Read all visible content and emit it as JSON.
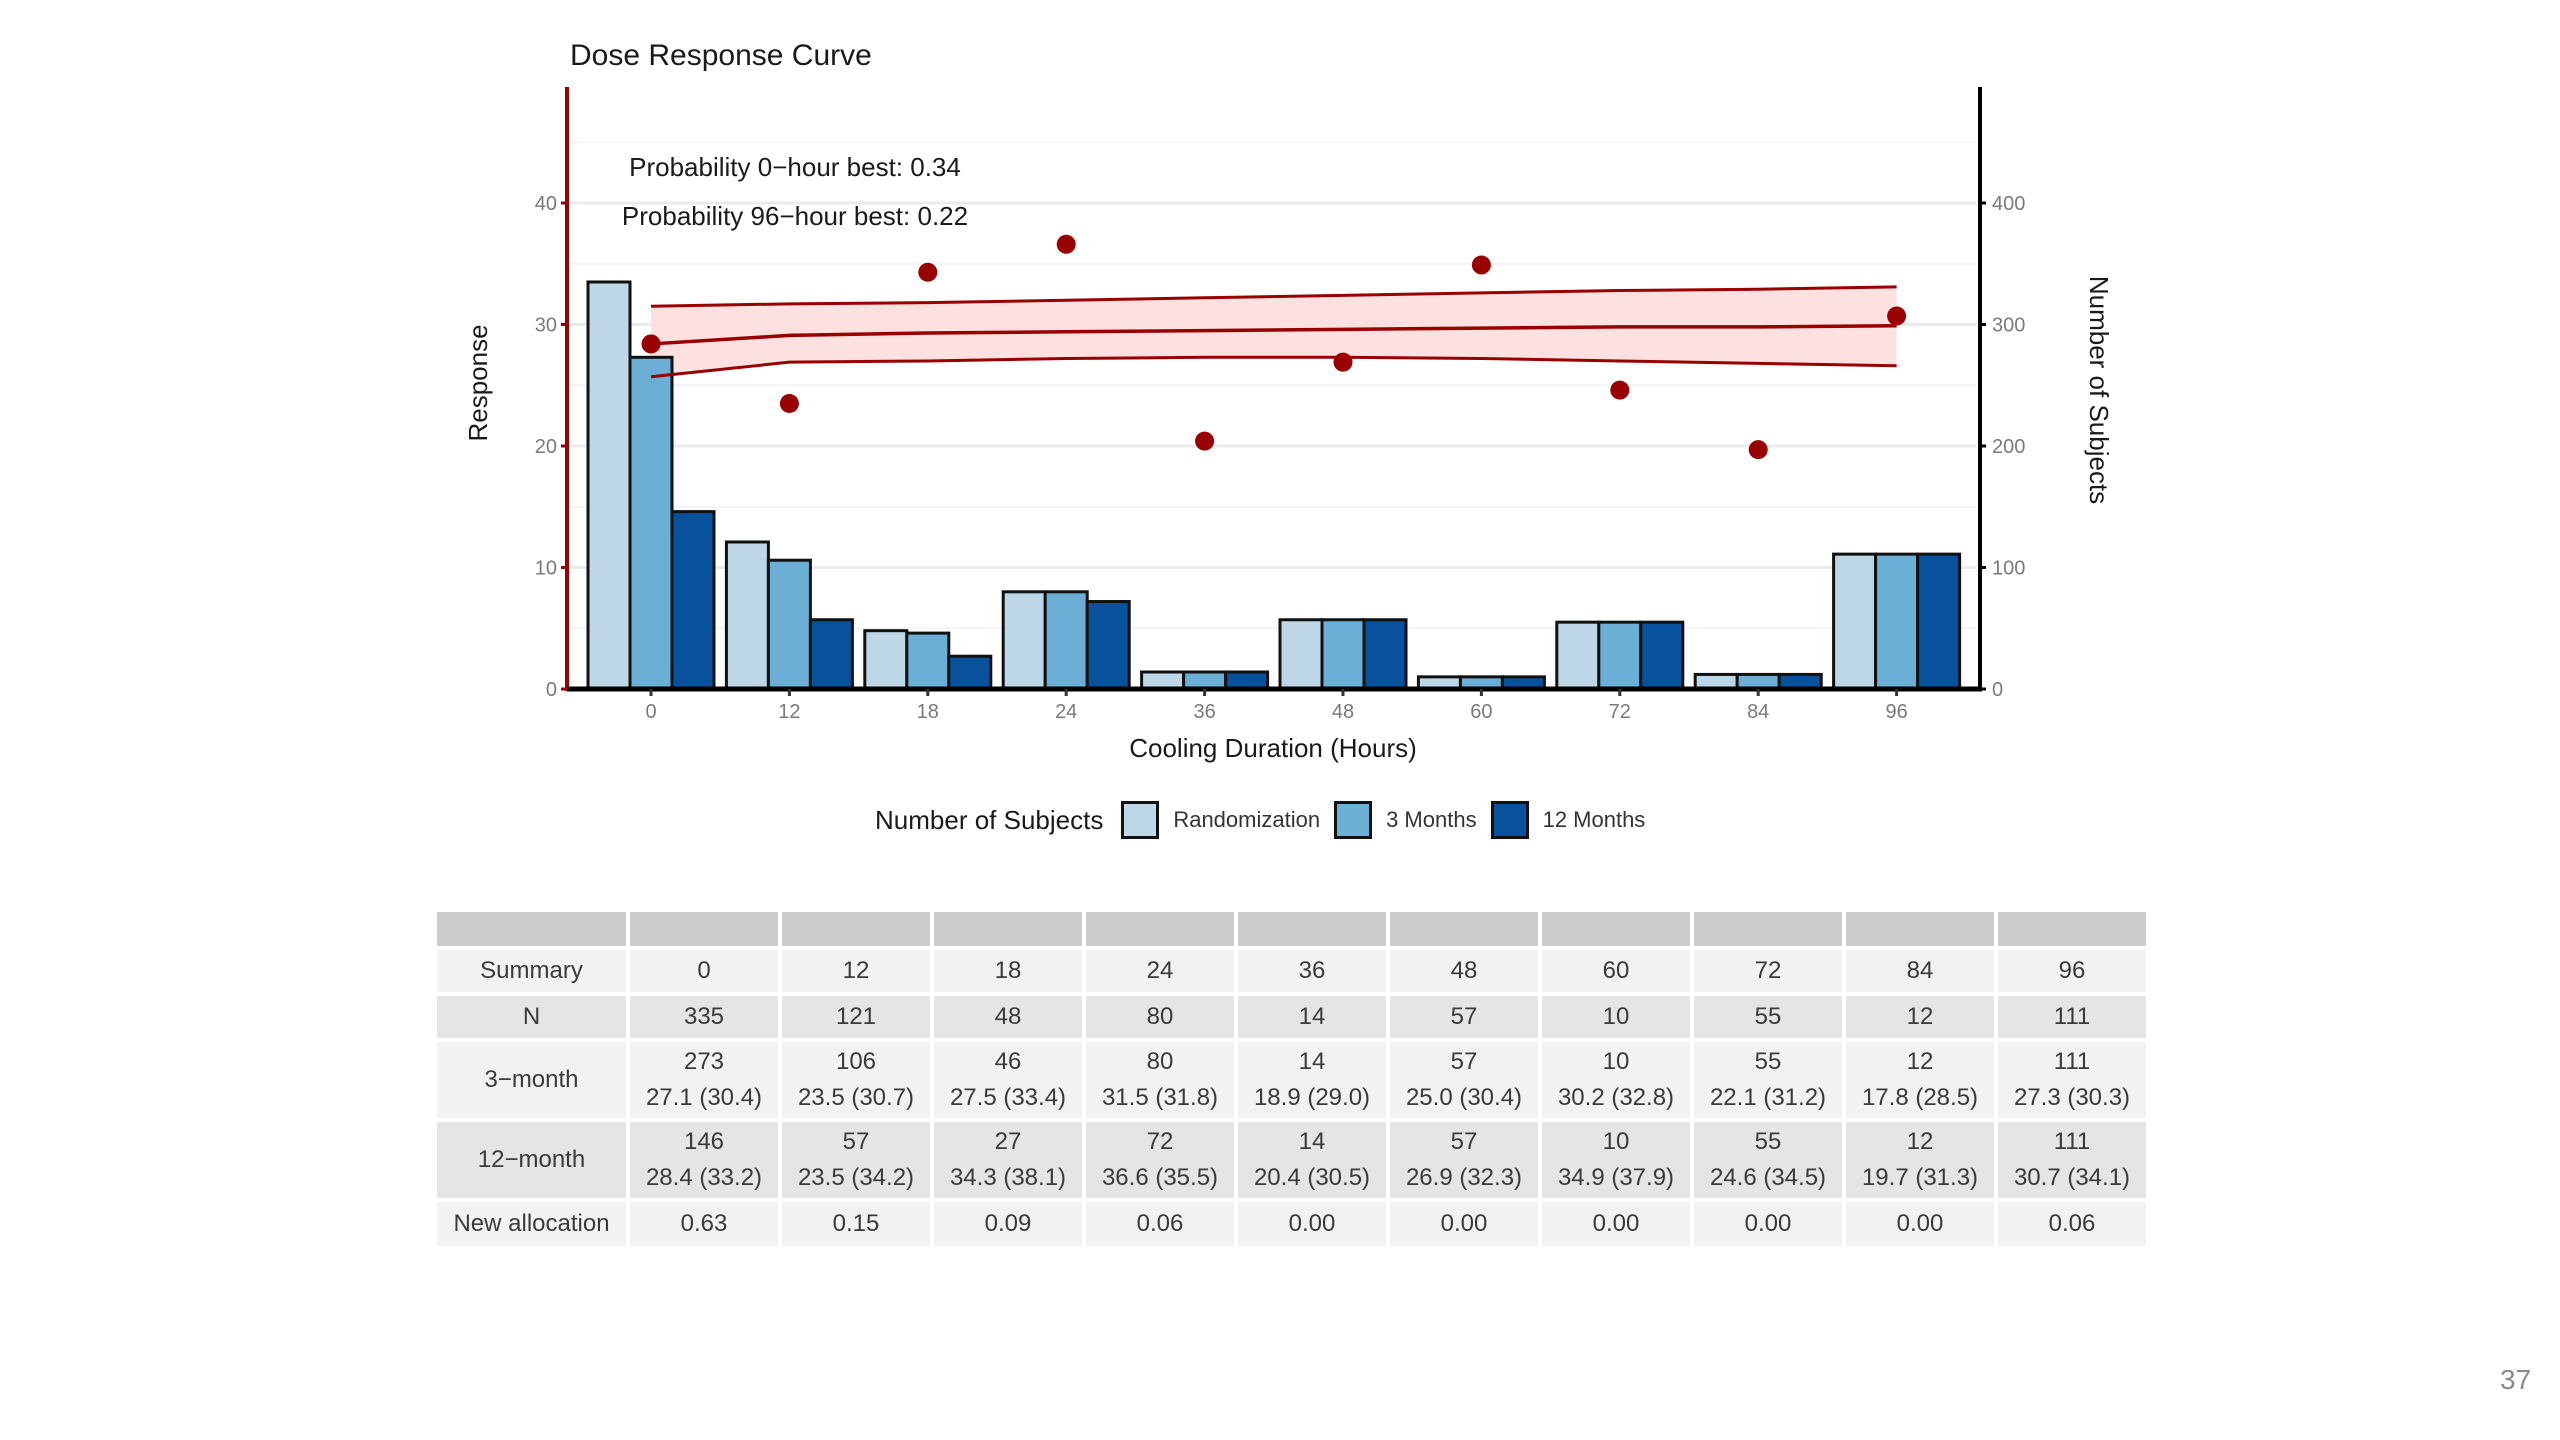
{
  "slide": {
    "page_number": "37"
  },
  "chart_data": {
    "type": "bar",
    "title": "Dose Response Curve",
    "xlabel": "Cooling Duration (Hours)",
    "ylabel": "Response",
    "y2label": "Number of Subjects",
    "categories": [
      "0",
      "12",
      "18",
      "24",
      "36",
      "48",
      "60",
      "72",
      "84",
      "96"
    ],
    "ylim": [
      0,
      49.5
    ],
    "yticks": [
      0,
      10,
      20,
      30,
      40
    ],
    "y2lim": [
      0,
      495
    ],
    "y2ticks": [
      0,
      100,
      200,
      300,
      400
    ],
    "grid": true,
    "series": [
      {
        "name": "Randomization",
        "axis": "y2",
        "color": "#bdd7e7",
        "values": [
          335,
          121,
          48,
          80,
          14,
          57,
          10,
          55,
          12,
          111
        ]
      },
      {
        "name": "3 Months",
        "axis": "y2",
        "color": "#6baed6",
        "values": [
          273,
          106,
          46,
          80,
          14,
          57,
          10,
          55,
          12,
          111
        ]
      },
      {
        "name": "12 Months",
        "axis": "y2",
        "color": "#08519c",
        "values": [
          146,
          57,
          27,
          72,
          14,
          57,
          10,
          55,
          12,
          111
        ]
      }
    ],
    "points": {
      "name": "Observed mean response",
      "color": "#990000",
      "values": [
        28.4,
        23.5,
        34.3,
        36.6,
        20.4,
        26.9,
        34.9,
        24.6,
        19.7,
        30.7
      ]
    },
    "curve": {
      "name": "Fitted dose response",
      "color": "#990000",
      "band_color": "#fde0e0",
      "mean": [
        28.4,
        29.1,
        29.3,
        29.4,
        29.5,
        29.6,
        29.7,
        29.8,
        29.8,
        29.9
      ],
      "upper": [
        31.5,
        31.7,
        31.8,
        32.0,
        32.2,
        32.4,
        32.6,
        32.8,
        32.9,
        33.1
      ],
      "lower": [
        25.7,
        26.9,
        27.0,
        27.2,
        27.3,
        27.3,
        27.2,
        27.0,
        26.8,
        26.6
      ]
    },
    "annotations": [
      "Probability 0−hour best: 0.34",
      "Probability 96−hour best: 0.22"
    ],
    "legend": {
      "title": "Number of Subjects",
      "position": "bottom",
      "items": [
        "Randomization",
        "3 Months",
        "12 Months"
      ]
    }
  },
  "table": {
    "header": [
      "",
      "",
      "",
      "",
      "",
      "",
      "",
      "",
      "",
      "",
      ""
    ],
    "rows": [
      {
        "label": "Summary",
        "cells": [
          [
            "0"
          ],
          [
            "12"
          ],
          [
            "18"
          ],
          [
            "24"
          ],
          [
            "36"
          ],
          [
            "48"
          ],
          [
            "60"
          ],
          [
            "72"
          ],
          [
            "84"
          ],
          [
            "96"
          ]
        ]
      },
      {
        "label": "N",
        "cells": [
          [
            "335"
          ],
          [
            "121"
          ],
          [
            "48"
          ],
          [
            "80"
          ],
          [
            "14"
          ],
          [
            "57"
          ],
          [
            "10"
          ],
          [
            "55"
          ],
          [
            "12"
          ],
          [
            "111"
          ]
        ]
      },
      {
        "label": "3−month",
        "cells": [
          [
            "273",
            "27.1 (30.4)"
          ],
          [
            "106",
            "23.5 (30.7)"
          ],
          [
            "46",
            "27.5 (33.4)"
          ],
          [
            "80",
            "31.5 (31.8)"
          ],
          [
            "14",
            "18.9 (29.0)"
          ],
          [
            "57",
            "25.0 (30.4)"
          ],
          [
            "10",
            "30.2 (32.8)"
          ],
          [
            "55",
            "22.1 (31.2)"
          ],
          [
            "12",
            "17.8 (28.5)"
          ],
          [
            "111",
            "27.3 (30.3)"
          ]
        ]
      },
      {
        "label": "12−month",
        "cells": [
          [
            "146",
            "28.4 (33.2)"
          ],
          [
            "57",
            "23.5 (34.2)"
          ],
          [
            "27",
            "34.3 (38.1)"
          ],
          [
            "72",
            "36.6 (35.5)"
          ],
          [
            "14",
            "20.4 (30.5)"
          ],
          [
            "57",
            "26.9 (32.3)"
          ],
          [
            "10",
            "34.9 (37.9)"
          ],
          [
            "55",
            "24.6 (34.5)"
          ],
          [
            "12",
            "19.7 (31.3)"
          ],
          [
            "111",
            "30.7 (34.1)"
          ]
        ]
      },
      {
        "label": "New allocation",
        "cells": [
          [
            "0.63"
          ],
          [
            "0.15"
          ],
          [
            "0.09"
          ],
          [
            "0.06"
          ],
          [
            "0.00"
          ],
          [
            "0.00"
          ],
          [
            "0.00"
          ],
          [
            "0.00"
          ],
          [
            "0.00"
          ],
          [
            "0.06"
          ]
        ]
      }
    ]
  }
}
